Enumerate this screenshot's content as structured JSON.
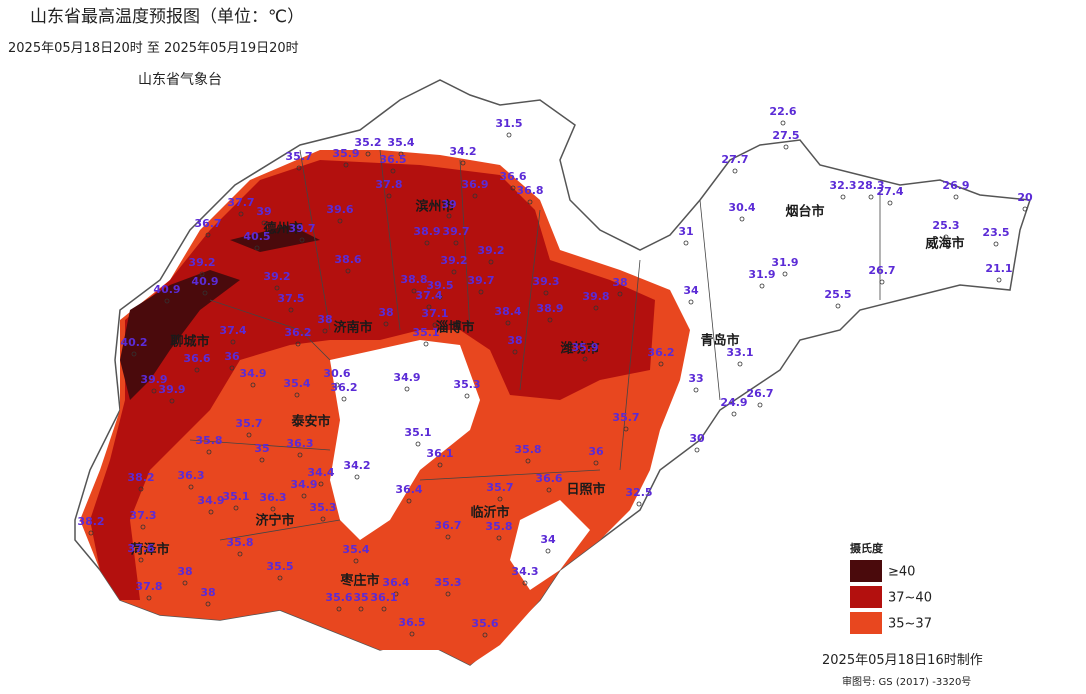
{
  "header": {
    "title": "山东省最高温度预报图（单位：℃）",
    "subtitle": "2025年05月18日20时  至  2025年05月19日20时",
    "agency": "山东省气象台"
  },
  "labels": [
    31.5,
    34.2,
    35.2,
    35.4,
    35.7,
    35.9,
    36.5,
    36.6,
    36.8,
    36.9,
    37.8,
    37.7,
    39,
    36.7,
    40.5,
    39.7,
    39.6,
    39,
    38.9,
    39.7,
    39.2,
    39.2,
    38.6,
    39.2,
    40.9,
    39.2,
    38.8,
    39.5,
    39.7,
    39.3,
    40.9,
    37.4,
    37.5,
    38,
    39.8,
    38.9,
    37.1,
    38.4,
    38,
    38,
    37.4,
    36.2,
    35.1,
    38,
    40.2,
    36.6,
    36,
    35.9,
    36.2,
    34.9,
    30.6,
    36.2,
    34.9,
    35.4,
    35.3,
    39.9,
    39.9,
    35.7,
    35.7,
    35.1,
    35.8,
    35,
    36.3,
    36.1,
    35.8,
    36,
    34.4,
    34.2,
    38.2,
    36.3,
    34.9,
    36.4,
    35.7,
    36.6,
    34.9,
    35.1,
    36.3,
    35.3,
    32.5,
    38.2,
    37.3,
    36.7,
    35.8,
    35.8,
    34,
    37.6,
    35.4,
    38,
    35.5,
    34.3,
    37.8,
    36.4,
    35.3,
    38,
    35.6,
    35,
    36.1,
    36.5,
    35.6,
    22.6,
    27.5,
    27.7,
    30.4,
    31,
    32.3,
    28.3,
    27.4,
    26.9,
    20,
    25.3,
    23.5,
    21.1,
    31.9,
    31.9,
    26.7,
    25.5,
    34,
    33.1,
    33,
    26.7,
    24.9,
    30
  ],
  "cities": [
    "聊城市",
    "德州市",
    "滨州市",
    "济南市",
    "淄博市",
    "潍坊市",
    "青岛市",
    "烟台市",
    "威海市",
    "泰安市",
    "济宁市",
    "临沂市",
    "日照市",
    "菏泽市",
    "枣庄市"
  ],
  "legend": {
    "title": "摄氏度",
    "items": [
      "≥40",
      "37~40",
      "35~37"
    ]
  },
  "footer": {
    "date": "2025年05月18日16时制作",
    "approval": "审图号: GS (2017) -3320号"
  }
}
